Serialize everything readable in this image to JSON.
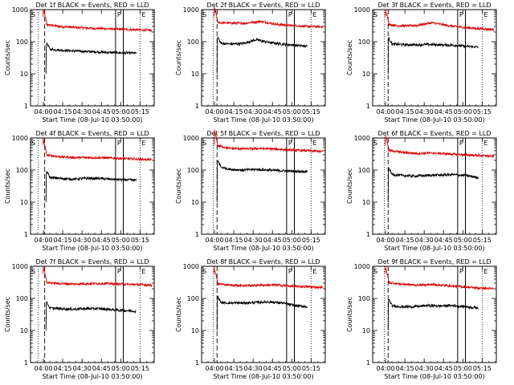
{
  "figure": {
    "ylabel": "Counts/sec",
    "xlabel": "Start Time (08-Jul-10 03:50:00)",
    "yticks": [
      "1",
      "10",
      "100",
      "1000"
    ],
    "xticks": [
      "04:00",
      "04:15",
      "04:30",
      "04:45",
      "05:00",
      "05:15"
    ],
    "marker_s": "S",
    "marker_p": "P",
    "marker_e": "E",
    "colors": {
      "events": "#000000",
      "lld": "#dd0000"
    }
  },
  "chart_data": [
    {
      "type": "line",
      "title": "Det 1f BLACK = Events, RED = LLD",
      "ylim": [
        1,
        1000
      ],
      "yscale": "log",
      "xlim_min": [
        0,
        96
      ],
      "events_start": 12,
      "lld_start": 10,
      "events_level": [
        60,
        55,
        52,
        50,
        48,
        46,
        45,
        44
      ],
      "lld_level": [
        350,
        300,
        280,
        265,
        255,
        245,
        235,
        225
      ],
      "bump_center": null,
      "vlines_min": {
        "dotted_left": 6,
        "dashed": 11,
        "solid1": 66,
        "solid2": 72,
        "dotted_right": 85
      },
      "series": [
        {
          "name": "Events"
        },
        {
          "name": "LLD"
        }
      ]
    },
    {
      "type": "line",
      "title": "Det 2f BLACK = Events, RED = LLD",
      "ylim": [
        1,
        1000
      ],
      "yscale": "log",
      "xlim_min": [
        0,
        96
      ],
      "events_start": 12,
      "lld_start": 10,
      "events_level": [
        90,
        85,
        88,
        115,
        95,
        85,
        78,
        72
      ],
      "lld_level": [
        400,
        380,
        380,
        430,
        350,
        320,
        300,
        290
      ],
      "bump_center": 40,
      "vlines_min": {
        "dotted_left": 9,
        "dashed": 12,
        "solid1": 66,
        "solid2": 72,
        "dotted_right": 85
      },
      "series": [
        {
          "name": "Events"
        },
        {
          "name": "LLD"
        }
      ]
    },
    {
      "type": "line",
      "title": "Det 3f BLACK = Events, RED = LLD",
      "ylim": [
        1,
        1000
      ],
      "yscale": "log",
      "xlim_min": [
        0,
        96
      ],
      "events_start": 12,
      "lld_start": 10,
      "events_level": [
        85,
        82,
        80,
        82,
        80,
        78,
        72,
        68
      ],
      "lld_level": [
        350,
        310,
        320,
        390,
        320,
        280,
        255,
        240
      ],
      "bump_center": 40,
      "vlines_min": {
        "dotted_left": 9,
        "dashed": 12,
        "solid1": 66,
        "solid2": 72,
        "dotted_right": 85
      },
      "series": [
        {
          "name": "Events"
        },
        {
          "name": "LLD"
        }
      ]
    },
    {
      "type": "line",
      "title": "Det 4f BLACK = Events, RED = LLD",
      "ylim": [
        1,
        1000
      ],
      "yscale": "log",
      "xlim_min": [
        0,
        96
      ],
      "events_start": 12,
      "lld_start": 10,
      "events_level": [
        60,
        55,
        52,
        55,
        55,
        52,
        50,
        48
      ],
      "lld_level": [
        300,
        260,
        245,
        245,
        240,
        230,
        220,
        210
      ],
      "bump_center": null,
      "vlines_min": {
        "dotted_left": 6,
        "dashed": 11,
        "solid1": 66,
        "solid2": 72,
        "dotted_right": 85
      },
      "series": [
        {
          "name": "Events"
        },
        {
          "name": "LLD"
        }
      ]
    },
    {
      "type": "line",
      "title": "Det 5f BLACK = Events, RED = LLD",
      "ylim": [
        1,
        1000
      ],
      "yscale": "log",
      "xlim_min": [
        0,
        96
      ],
      "events_start": 12,
      "lld_start": 10,
      "events_level": [
        130,
        105,
        100,
        105,
        100,
        95,
        92,
        90
      ],
      "lld_level": [
        600,
        470,
        460,
        470,
        450,
        420,
        400,
        380
      ],
      "bump_center": null,
      "vlines_min": {
        "dotted_left": 9,
        "dashed": 12,
        "solid1": 66,
        "solid2": 72,
        "dotted_right": 85
      },
      "series": [
        {
          "name": "Events"
        },
        {
          "name": "LLD"
        }
      ]
    },
    {
      "type": "line",
      "title": "Det 6f BLACK = Events, RED = LLD",
      "ylim": [
        1,
        1000
      ],
      "yscale": "log",
      "xlim_min": [
        0,
        96
      ],
      "events_start": 12,
      "lld_start": 10,
      "events_level": [
        75,
        68,
        65,
        68,
        70,
        72,
        68,
        58
      ],
      "lld_level": [
        420,
        360,
        330,
        340,
        320,
        300,
        285,
        270
      ],
      "bump_center": null,
      "vlines_min": {
        "dotted_left": 9,
        "dashed": 12,
        "solid1": 66,
        "solid2": 72,
        "dotted_right": 85
      },
      "series": [
        {
          "name": "Events"
        },
        {
          "name": "LLD"
        }
      ]
    },
    {
      "type": "line",
      "title": "Det 7f BLACK = Events, RED = LLD",
      "ylim": [
        1,
        1000
      ],
      "yscale": "log",
      "xlim_min": [
        0,
        96
      ],
      "events_start": 12,
      "lld_start": 10,
      "events_level": [
        50,
        48,
        46,
        48,
        48,
        45,
        42,
        40
      ],
      "lld_level": [
        320,
        290,
        280,
        290,
        290,
        280,
        270,
        260
      ],
      "bump_center": null,
      "vlines_min": {
        "dotted_left": 6,
        "dashed": 11,
        "solid1": 66,
        "solid2": 72,
        "dotted_right": 85
      },
      "series": [
        {
          "name": "Events"
        },
        {
          "name": "LLD"
        }
      ]
    },
    {
      "type": "line",
      "title": "Det 8f BLACK = Events, RED = LLD",
      "ylim": [
        1,
        1000
      ],
      "yscale": "log",
      "xlim_min": [
        0,
        96
      ],
      "events_start": 12,
      "lld_start": 10,
      "events_level": [
        75,
        72,
        72,
        75,
        78,
        72,
        60,
        55
      ],
      "lld_level": [
        290,
        260,
        250,
        260,
        260,
        240,
        230,
        220
      ],
      "bump_center": null,
      "vlines_min": {
        "dotted_left": 9,
        "dashed": 12,
        "solid1": 66,
        "solid2": 72,
        "dotted_right": 85
      },
      "series": [
        {
          "name": "Events"
        },
        {
          "name": "LLD"
        }
      ]
    },
    {
      "type": "line",
      "title": "Det 9f BLACK = Events, RED = LLD",
      "ylim": [
        1,
        1000
      ],
      "yscale": "log",
      "xlim_min": [
        0,
        96
      ],
      "events_start": 12,
      "lld_start": 10,
      "events_level": [
        60,
        55,
        55,
        60,
        58,
        60,
        55,
        50
      ],
      "lld_level": [
        320,
        280,
        260,
        270,
        250,
        230,
        210,
        200
      ],
      "bump_center": null,
      "vlines_min": {
        "dotted_left": 9,
        "dashed": 12,
        "solid1": 66,
        "solid2": 72,
        "dotted_right": 85
      },
      "series": [
        {
          "name": "Events"
        },
        {
          "name": "LLD"
        }
      ]
    }
  ]
}
